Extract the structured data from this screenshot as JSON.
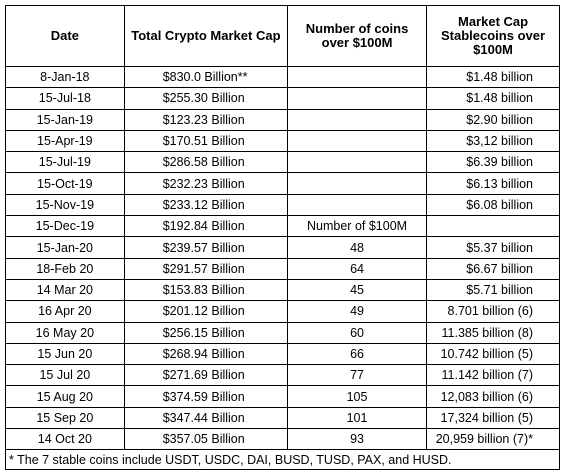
{
  "table": {
    "headers": [
      "Date",
      "Total Crypto Market Cap",
      "Number of coins over $100M",
      "Market Cap Stablecoins over $100M"
    ],
    "rows": [
      [
        "8-Jan-18",
        "$830.0 Billion**",
        null,
        "$1.48 billion"
      ],
      [
        "15-Jul-18",
        "$255.30 Billion",
        null,
        "$1.48 billion"
      ],
      [
        "15-Jan-19",
        "$123.23 Billion",
        null,
        "$2.90 billion"
      ],
      [
        "15-Apr-19",
        "$170.51 Billion",
        null,
        "$3,12 billion"
      ],
      [
        "15-Jul-19",
        "$286.58 Billion",
        null,
        "$6.39 billion"
      ],
      [
        "15-Oct-19",
        "$232.23 Billion",
        null,
        "$6.13 billion"
      ],
      [
        "15-Nov-19",
        "$233.12 Billion",
        null,
        "$6.08 billion"
      ],
      [
        "15-Dec-19",
        "$192.84 Billion",
        "Number of $100M",
        null
      ],
      [
        "15-Jan-20",
        "$239.57 Billion",
        "48",
        "$5.37 billion"
      ],
      [
        "18-Feb 20",
        "$291.57 Billion",
        "64",
        "$6.67 billion"
      ],
      [
        "14 Mar 20",
        "$153.83 Billion",
        "45",
        "$5.71 billion"
      ],
      [
        "16 Apr 20",
        "$201.12 Billion",
        "49",
        "8.701 billion (6)"
      ],
      [
        "16 May 20",
        "$256.15 Billion",
        "60",
        "11.385 billion (8)"
      ],
      [
        "15 Jun 20",
        "$268.94 Billion",
        "66",
        "10.742 billion (5)"
      ],
      [
        "15 Jul 20",
        "$271.69 Billion",
        "77",
        "11.142 billion (7)"
      ],
      [
        "15 Aug 20",
        "$374.59 Billion",
        "105",
        "12,083 billion (6)"
      ],
      [
        "15 Sep 20",
        "$347.44 Billion",
        "101",
        "17,324 billion (5)"
      ],
      [
        "14 Oct 20",
        "$357.05 Billion",
        "93",
        "20,959 billion (7)*"
      ]
    ],
    "footnote": "* The 7 stable coins include USDT, USDC, DAI, BUSD, TUSD, PAX, and HUSD."
  }
}
